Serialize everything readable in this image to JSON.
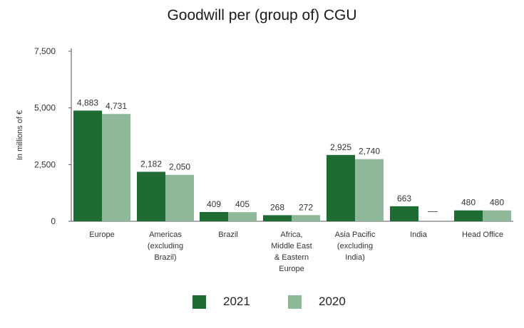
{
  "title": "Goodwill per (group of) CGU",
  "chart_data": {
    "type": "bar",
    "title": "Goodwill per (group of) CGU",
    "xlabel": "",
    "ylabel": "In millions of €",
    "ylim": [
      0,
      7500
    ],
    "yticks": [
      0,
      2500,
      5000,
      7500
    ],
    "ytick_labels": [
      "0",
      "2,500",
      "5,000",
      "7,500"
    ],
    "grid": false,
    "legend_position": "bottom",
    "categories": [
      [
        "Europe"
      ],
      [
        "Americas",
        "(excluding",
        "Brazil)"
      ],
      [
        "Brazil"
      ],
      [
        "Africa,",
        "Middle East",
        "& Eastern",
        "Europe"
      ],
      [
        "Asia Pacific",
        "(excluding",
        "India)"
      ],
      [
        "India"
      ],
      [
        "Head Office"
      ]
    ],
    "series": [
      {
        "name": "2021",
        "color": "#1e6b33",
        "values": [
          4883,
          2182,
          409,
          268,
          2925,
          663,
          480
        ],
        "labels": [
          "4,883",
          "2,182",
          "409",
          "268",
          "2,925",
          "663",
          "480"
        ]
      },
      {
        "name": "2020",
        "color": "#8db89a",
        "values": [
          4731,
          2050,
          405,
          272,
          2740,
          null,
          480
        ],
        "labels": [
          "4,731",
          "2,050",
          "405",
          "272",
          "2,740",
          "—",
          "480"
        ]
      }
    ]
  },
  "legend": [
    {
      "label": "2021",
      "color": "#1e6b33"
    },
    {
      "label": "2020",
      "color": "#8db89a"
    }
  ]
}
